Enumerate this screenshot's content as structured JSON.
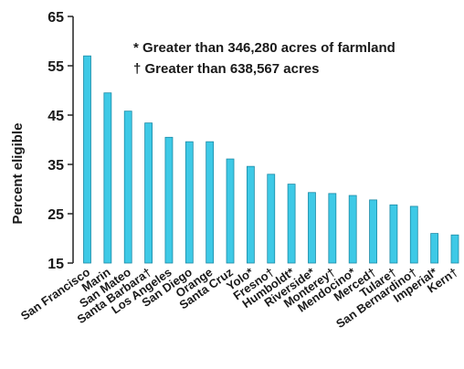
{
  "chart_data": {
    "type": "bar",
    "categories": [
      "San Francisco",
      "Marin",
      "San Mateo",
      "Santa Barbara†",
      "Los Angeles",
      "San Diego",
      "Orange",
      "Santa Cruz",
      "Yolo*",
      "Fresno†",
      "Humboldt*",
      "Riverside*",
      "Monterey†",
      "Mendocino*",
      "Merced†",
      "Tulare†",
      "San Bernardino†",
      "Imperial*",
      "Kern†"
    ],
    "values": [
      57,
      49.5,
      45.8,
      43.4,
      40.5,
      39.6,
      39.6,
      36.1,
      34.6,
      33,
      31,
      29.3,
      29.1,
      28.7,
      27.8,
      26.8,
      26.5,
      21,
      20.7
    ],
    "ylabel": "Percent eligible",
    "ylim": [
      15,
      65
    ],
    "yticks": [
      15,
      25,
      35,
      45,
      55,
      65
    ],
    "annotations": [
      "* Greater than 346,280 acres of farmland",
      "† Greater than 638,567 acres"
    ],
    "grid": false,
    "bar_color": "#3ec9e6",
    "bar_edge_color": "#1b8aa6"
  }
}
